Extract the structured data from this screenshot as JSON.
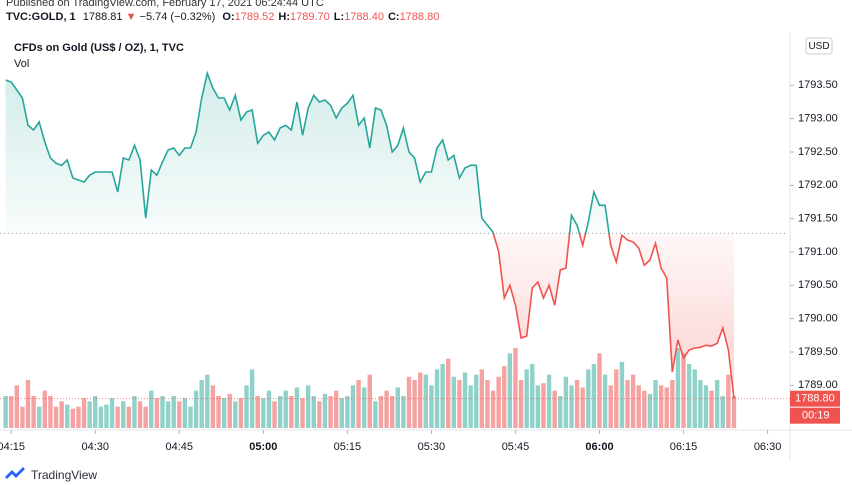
{
  "header": {
    "published": "Published on TradingView.com, February 17, 2021 06:24:44 UTC",
    "symbol": "TVC:GOLD, 1",
    "last": "1788.81",
    "arrow": "▼",
    "change": "−5.74 (−0.32%)",
    "ohlc": [
      {
        "label": "O:",
        "value": "1789.52"
      },
      {
        "label": "H:",
        "value": "1789.70"
      },
      {
        "label": "L:",
        "value": "1788.40"
      },
      {
        "label": "C:",
        "value": "1788.80"
      }
    ]
  },
  "footer": {
    "brand": "TradingView"
  },
  "chart_data": {
    "type": "baseline",
    "title": "CFDs on Gold (US$ / OZ), 1, TVC",
    "currency": "USD",
    "x": [
      "04:14",
      "04:15",
      "04:16",
      "04:17",
      "04:18",
      "04:19",
      "04:20",
      "04:21",
      "04:22",
      "04:23",
      "04:24",
      "04:25",
      "04:26",
      "04:27",
      "04:28",
      "04:29",
      "04:30",
      "04:31",
      "04:32",
      "04:33",
      "04:34",
      "04:35",
      "04:36",
      "04:37",
      "04:38",
      "04:39",
      "04:40",
      "04:41",
      "04:42",
      "04:43",
      "04:44",
      "04:45",
      "04:46",
      "04:47",
      "04:48",
      "04:49",
      "04:50",
      "04:51",
      "04:52",
      "04:53",
      "04:54",
      "04:55",
      "04:56",
      "04:57",
      "04:58",
      "04:59",
      "05:00",
      "05:01",
      "05:02",
      "05:03",
      "05:04",
      "05:05",
      "05:06",
      "05:07",
      "05:08",
      "05:09",
      "05:10",
      "05:11",
      "05:12",
      "05:13",
      "05:14",
      "05:15",
      "05:16",
      "05:17",
      "05:18",
      "05:19",
      "05:20",
      "05:21",
      "05:22",
      "05:23",
      "05:24",
      "05:25",
      "05:26",
      "05:27",
      "05:28",
      "05:29",
      "05:30",
      "05:31",
      "05:32",
      "05:33",
      "05:34",
      "05:35",
      "05:36",
      "05:37",
      "05:38",
      "05:39",
      "05:40",
      "05:41",
      "05:42",
      "05:43",
      "05:44",
      "05:45",
      "05:46",
      "05:47",
      "05:48",
      "05:49",
      "05:50",
      "05:51",
      "05:52",
      "05:53",
      "05:54",
      "05:55",
      "05:56",
      "05:57",
      "05:58",
      "05:59",
      "06:00",
      "06:01",
      "06:02",
      "06:03",
      "06:04",
      "06:05",
      "06:06",
      "06:07",
      "06:08",
      "06:09",
      "06:10",
      "06:11",
      "06:12",
      "06:13",
      "06:14",
      "06:15",
      "06:16",
      "06:17",
      "06:18",
      "06:19",
      "06:20",
      "06:21",
      "06:22",
      "06:23",
      "06:24"
    ],
    "series": [
      {
        "name": "CFDs on Gold (US$ / OZ)",
        "up_color": "#26a69a",
        "down_color": "#ef5350",
        "values": [
          1793.58,
          1793.55,
          1793.43,
          1793.31,
          1792.9,
          1792.83,
          1792.95,
          1792.65,
          1792.41,
          1792.33,
          1792.3,
          1792.38,
          1792.11,
          1792.08,
          1792.05,
          1792.15,
          1792.2,
          1792.2,
          1792.2,
          1792.2,
          1791.9,
          1792.41,
          1792.38,
          1792.6,
          1792.38,
          1791.51,
          1792.23,
          1792.15,
          1792.35,
          1792.53,
          1792.56,
          1792.45,
          1792.56,
          1792.56,
          1792.8,
          1793.31,
          1793.68,
          1793.46,
          1793.31,
          1793.31,
          1793.13,
          1793.35,
          1792.98,
          1793.1,
          1793.13,
          1792.63,
          1792.75,
          1792.8,
          1792.68,
          1792.86,
          1792.9,
          1792.83,
          1793.25,
          1792.75,
          1793.16,
          1793.35,
          1793.25,
          1793.28,
          1793.2,
          1793.01,
          1793.16,
          1793.23,
          1793.35,
          1792.9,
          1793.01,
          1792.56,
          1793.16,
          1793.13,
          1792.9,
          1792.5,
          1792.6,
          1792.86,
          1792.5,
          1792.41,
          1792.05,
          1792.2,
          1792.2,
          1792.56,
          1792.68,
          1792.38,
          1792.45,
          1792.11,
          1792.26,
          1792.3,
          1792.3,
          1791.51,
          1791.4,
          1791.3,
          1791.0,
          1790.31,
          1790.5,
          1790.2,
          1789.71,
          1789.74,
          1790.46,
          1790.55,
          1790.31,
          1790.5,
          1790.2,
          1790.73,
          1790.76,
          1791.55,
          1791.4,
          1791.1,
          1791.45,
          1791.9,
          1791.7,
          1791.7,
          1791.1,
          1790.85,
          1791.25,
          1791.18,
          1791.15,
          1791.06,
          1790.8,
          1790.88,
          1791.13,
          1790.76,
          1790.61,
          1789.2,
          1789.68,
          1789.41,
          1789.53,
          1789.56,
          1789.57,
          1789.6,
          1789.59,
          1789.63,
          1789.86,
          1789.53,
          1788.8
        ]
      },
      {
        "name": "Vol",
        "up_color": "#90d2c9",
        "down_color": "#f5a3a2",
        "values": [
          30,
          30,
          40,
          20,
          45,
          30,
          20,
          35,
          30,
          20,
          25,
          22,
          18,
          20,
          28,
          25,
          30,
          20,
          22,
          28,
          20,
          25,
          20,
          30,
          25,
          20,
          35,
          28,
          30,
          25,
          30,
          25,
          28,
          20,
          35,
          45,
          50,
          40,
          30,
          28,
          32,
          25,
          28,
          40,
          55,
          30,
          28,
          35,
          25,
          30,
          35,
          30,
          38,
          28,
          40,
          30,
          25,
          32,
          30,
          35,
          28,
          30,
          40,
          45,
          38,
          50,
          25,
          30,
          35,
          30,
          38,
          30,
          48,
          45,
          52,
          50,
          40,
          55,
          60,
          65,
          48,
          45,
          52,
          40,
          50,
          55,
          45,
          35,
          48,
          58,
          70,
          75,
          45,
          55,
          60,
          40,
          42,
          50,
          35,
          30,
          48,
          40,
          45,
          38,
          55,
          60,
          70,
          50,
          40,
          55,
          62,
          45,
          50,
          40,
          35,
          32,
          45,
          40,
          38,
          45,
          75,
          70,
          60,
          55,
          45,
          40,
          35,
          45,
          30,
          50,
          30
        ]
      }
    ],
    "baseline": 1791.28,
    "last_price": {
      "value": 1788.8,
      "label": "1788.80"
    },
    "countdown": "00:19",
    "xlim": [
      "04:13",
      "06:34"
    ],
    "xticks": [
      "04:15",
      "04:30",
      "04:45",
      "05:00",
      "05:15",
      "05:30",
      "05:45",
      "06:00",
      "06:15",
      "06:30"
    ],
    "ylim": [
      1788.33,
      1794.18
    ],
    "yticks": [
      {
        "value": 1789.0,
        "label": "1789.00"
      },
      {
        "value": 1789.5,
        "label": "1789.50"
      },
      {
        "value": 1790.0,
        "label": "1790.00"
      },
      {
        "value": 1790.5,
        "label": "1790.50"
      },
      {
        "value": 1791.0,
        "label": "1791.00"
      },
      {
        "value": 1791.5,
        "label": "1791.50"
      },
      {
        "value": 1792.0,
        "label": "1792.00"
      },
      {
        "value": 1792.5,
        "label": "1792.50"
      },
      {
        "value": 1793.0,
        "label": "1793.00"
      },
      {
        "value": 1793.5,
        "label": "1793.50"
      }
    ],
    "grid": false
  }
}
